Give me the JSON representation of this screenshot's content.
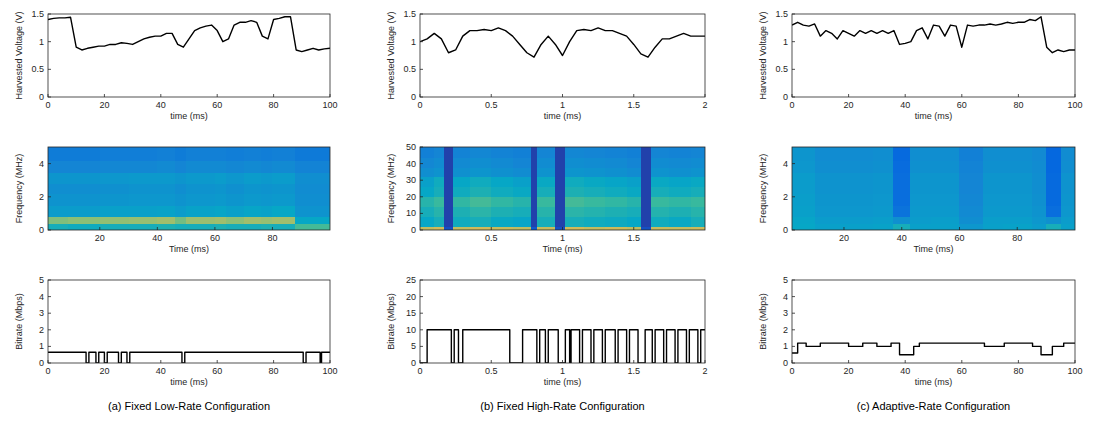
{
  "chart_data": [
    {
      "type": "line",
      "x_label": "time (ms)",
      "y_label": "Harvested Voltage (V)",
      "color": "#000000",
      "line_style": "solid",
      "xlim": [
        0,
        100
      ],
      "ylim": [
        0,
        1.5
      ],
      "xticks": [
        0,
        20,
        40,
        60,
        80,
        100
      ],
      "yticks": [
        0,
        0.5,
        1,
        1.5
      ],
      "x": [
        0,
        2,
        4,
        6,
        8,
        10,
        12,
        14,
        16,
        18,
        20,
        22,
        24,
        26,
        28,
        30,
        32,
        34,
        36,
        38,
        40,
        42,
        44,
        46,
        48,
        50,
        52,
        54,
        56,
        58,
        60,
        62,
        64,
        66,
        68,
        70,
        72,
        74,
        76,
        78,
        80,
        82,
        84,
        86,
        88,
        90,
        92,
        94,
        96,
        98,
        100
      ],
      "values": [
        1.4,
        1.42,
        1.43,
        1.43,
        1.44,
        0.9,
        0.85,
        0.88,
        0.9,
        0.92,
        0.92,
        0.95,
        0.95,
        0.98,
        0.97,
        0.95,
        1.0,
        1.05,
        1.08,
        1.1,
        1.1,
        1.15,
        1.15,
        0.95,
        0.9,
        1.05,
        1.2,
        1.25,
        1.28,
        1.3,
        1.2,
        1.0,
        1.05,
        1.3,
        1.35,
        1.35,
        1.38,
        1.35,
        1.1,
        1.05,
        1.4,
        1.42,
        1.45,
        1.45,
        0.85,
        0.82,
        0.85,
        0.88,
        0.85,
        0.87,
        0.88
      ]
    },
    {
      "type": "heatmap",
      "x_label": "Time (ms)",
      "y_label": "Frequency (MHz)",
      "xlim": [
        2,
        100
      ],
      "ylim": [
        0,
        5
      ],
      "xticks": [
        20,
        40,
        60,
        80
      ],
      "yticks": [
        0,
        2,
        4
      ],
      "zlim": [
        0,
        1
      ],
      "x_edges": [
        2,
        9,
        20,
        30,
        40,
        46,
        50,
        60,
        64,
        70,
        76,
        80,
        88,
        100
      ],
      "y_edges": [
        0,
        0.4,
        0.8,
        1.5,
        2.2,
        2.8,
        3.5,
        4.2,
        5
      ],
      "cells": [
        [
          0.5,
          0.48,
          0.5,
          0.5,
          0.52,
          0.5,
          0.5,
          0.52,
          0.5,
          0.5,
          0.52,
          0.5,
          0.62
        ],
        [
          0.72,
          0.74,
          0.75,
          0.76,
          0.78,
          0.7,
          0.77,
          0.78,
          0.74,
          0.78,
          0.76,
          0.78,
          0.45
        ],
        [
          0.4,
          0.4,
          0.42,
          0.42,
          0.43,
          0.4,
          0.43,
          0.44,
          0.42,
          0.44,
          0.43,
          0.45,
          0.36
        ],
        [
          0.36,
          0.36,
          0.37,
          0.38,
          0.38,
          0.36,
          0.38,
          0.39,
          0.37,
          0.39,
          0.38,
          0.39,
          0.34
        ],
        [
          0.34,
          0.34,
          0.35,
          0.36,
          0.36,
          0.34,
          0.36,
          0.37,
          0.35,
          0.37,
          0.36,
          0.37,
          0.33
        ],
        [
          0.37,
          0.37,
          0.38,
          0.39,
          0.39,
          0.37,
          0.39,
          0.4,
          0.38,
          0.4,
          0.39,
          0.4,
          0.34
        ],
        [
          0.3,
          0.3,
          0.31,
          0.31,
          0.32,
          0.3,
          0.32,
          0.32,
          0.31,
          0.32,
          0.31,
          0.32,
          0.29
        ],
        [
          0.26,
          0.26,
          0.27,
          0.27,
          0.28,
          0.26,
          0.28,
          0.28,
          0.27,
          0.28,
          0.27,
          0.28,
          0.25
        ]
      ]
    },
    {
      "type": "line",
      "x_label": "time (ms)",
      "y_label": "Bitrate (Mbps)",
      "color": "#000000",
      "line_style": "step",
      "xlim": [
        0,
        100
      ],
      "ylim": [
        0,
        5
      ],
      "xticks": [
        0,
        20,
        40,
        60,
        80,
        100
      ],
      "yticks": [
        0,
        1,
        2,
        3,
        4,
        5
      ],
      "x": [
        0,
        13.5,
        14.5,
        17,
        18,
        20,
        21,
        25,
        26,
        28,
        29,
        47.5,
        48.5,
        90.5,
        91.5,
        96.5,
        97,
        100
      ],
      "values": [
        0.65,
        0,
        0.65,
        0,
        0.65,
        0,
        0.65,
        0,
        0.65,
        0,
        0.65,
        0,
        0.65,
        0,
        0.65,
        0,
        0.65,
        0.65
      ]
    },
    {
      "type": "line",
      "x_label": "time (ms)",
      "y_label": "Harvested Voltage (V)",
      "color": "#000000",
      "line_style": "solid",
      "xlim": [
        0,
        2
      ],
      "ylim": [
        0,
        1.5
      ],
      "xticks": [
        0,
        0.5,
        1,
        1.5,
        2
      ],
      "yticks": [
        0,
        0.5,
        1,
        1.5
      ],
      "x": [
        0,
        0.05,
        0.1,
        0.15,
        0.2,
        0.25,
        0.3,
        0.35,
        0.4,
        0.45,
        0.5,
        0.55,
        0.6,
        0.65,
        0.7,
        0.75,
        0.8,
        0.85,
        0.9,
        0.95,
        1.0,
        1.05,
        1.1,
        1.15,
        1.2,
        1.25,
        1.3,
        1.35,
        1.4,
        1.45,
        1.5,
        1.55,
        1.6,
        1.65,
        1.7,
        1.75,
        1.8,
        1.85,
        1.9,
        1.95,
        2.0
      ],
      "values": [
        1.0,
        1.05,
        1.15,
        1.05,
        0.8,
        0.85,
        1.1,
        1.2,
        1.2,
        1.22,
        1.2,
        1.25,
        1.2,
        1.1,
        0.95,
        0.8,
        0.72,
        0.95,
        1.1,
        0.95,
        0.75,
        1.0,
        1.2,
        1.22,
        1.2,
        1.25,
        1.2,
        1.2,
        1.15,
        1.1,
        0.95,
        0.78,
        0.72,
        0.9,
        1.05,
        1.05,
        1.1,
        1.15,
        1.1,
        1.1,
        1.1
      ]
    },
    {
      "type": "heatmap",
      "x_label": "Time (ms)",
      "y_label": "Frequency (MHz)",
      "xlim": [
        0,
        2
      ],
      "ylim": [
        0,
        50
      ],
      "xticks": [
        0.5,
        1,
        1.5
      ],
      "yticks": [
        0,
        10,
        20,
        30,
        40,
        50
      ],
      "zlim": [
        0,
        1
      ],
      "x_edges": [
        0,
        0.1,
        0.17,
        0.23,
        0.35,
        0.5,
        0.65,
        0.78,
        0.82,
        0.95,
        1.02,
        1.15,
        1.3,
        1.45,
        1.55,
        1.62,
        1.75,
        1.9,
        2
      ],
      "y_edges": [
        0,
        2,
        8,
        14,
        20,
        26,
        32,
        38,
        44,
        50
      ],
      "cells": [
        [
          0.85,
          0.88,
          0.1,
          0.85,
          0.88,
          0.86,
          0.84,
          0.12,
          0.86,
          0.1,
          0.88,
          0.85,
          0.87,
          0.84,
          0.1,
          0.86,
          0.85,
          0.87
        ],
        [
          0.45,
          0.5,
          0.06,
          0.48,
          0.5,
          0.46,
          0.44,
          0.06,
          0.5,
          0.06,
          0.5,
          0.48,
          0.47,
          0.45,
          0.06,
          0.48,
          0.46,
          0.5
        ],
        [
          0.5,
          0.55,
          0.06,
          0.52,
          0.56,
          0.52,
          0.5,
          0.06,
          0.55,
          0.06,
          0.56,
          0.54,
          0.52,
          0.5,
          0.06,
          0.54,
          0.52,
          0.55
        ],
        [
          0.55,
          0.6,
          0.06,
          0.58,
          0.62,
          0.58,
          0.55,
          0.06,
          0.6,
          0.06,
          0.62,
          0.6,
          0.58,
          0.55,
          0.06,
          0.6,
          0.58,
          0.6
        ],
        [
          0.45,
          0.5,
          0.06,
          0.48,
          0.52,
          0.48,
          0.46,
          0.06,
          0.5,
          0.06,
          0.52,
          0.5,
          0.48,
          0.46,
          0.06,
          0.5,
          0.48,
          0.5
        ],
        [
          0.42,
          0.48,
          0.06,
          0.45,
          0.48,
          0.45,
          0.42,
          0.06,
          0.46,
          0.06,
          0.48,
          0.46,
          0.44,
          0.42,
          0.06,
          0.46,
          0.44,
          0.46
        ],
        [
          0.34,
          0.36,
          0.06,
          0.35,
          0.37,
          0.35,
          0.33,
          0.06,
          0.36,
          0.06,
          0.37,
          0.36,
          0.35,
          0.33,
          0.06,
          0.36,
          0.35,
          0.36
        ],
        [
          0.31,
          0.33,
          0.06,
          0.32,
          0.34,
          0.32,
          0.3,
          0.06,
          0.33,
          0.06,
          0.34,
          0.33,
          0.32,
          0.3,
          0.06,
          0.33,
          0.32,
          0.33
        ],
        [
          0.28,
          0.3,
          0.06,
          0.29,
          0.31,
          0.29,
          0.28,
          0.06,
          0.3,
          0.06,
          0.31,
          0.3,
          0.29,
          0.28,
          0.06,
          0.3,
          0.29,
          0.3
        ]
      ]
    },
    {
      "type": "line",
      "x_label": "time (ms)",
      "y_label": "Bitrate (Mbps)",
      "color": "#000000",
      "line_style": "step",
      "xlim": [
        0,
        2
      ],
      "ylim": [
        0,
        25
      ],
      "xticks": [
        0,
        0.5,
        1,
        1.5,
        2
      ],
      "yticks": [
        0,
        5,
        10,
        15,
        20,
        25
      ],
      "x": [
        0,
        0.05,
        0.22,
        0.24,
        0.27,
        0.3,
        0.63,
        0.72,
        0.82,
        0.84,
        0.88,
        0.9,
        0.97,
        1.02,
        1.05,
        1.06,
        1.12,
        1.14,
        1.2,
        1.22,
        1.28,
        1.3,
        1.37,
        1.39,
        1.45,
        1.47,
        1.53,
        1.58,
        1.63,
        1.65,
        1.71,
        1.73,
        1.79,
        1.81,
        1.87,
        1.89,
        1.95,
        1.97,
        2
      ],
      "values": [
        0,
        10,
        0,
        10,
        0,
        10,
        0,
        10,
        0,
        10,
        0,
        10,
        0,
        10,
        0,
        10,
        0,
        10,
        0,
        10,
        0,
        10,
        0,
        10,
        0,
        10,
        0,
        10,
        0,
        10,
        0,
        10,
        0,
        10,
        0,
        10,
        0,
        10,
        10
      ]
    },
    {
      "type": "line",
      "x_label": "time (ms)",
      "y_label": "Harvested Voltage (V)",
      "color": "#000000",
      "line_style": "solid",
      "xlim": [
        0,
        100
      ],
      "ylim": [
        0,
        1.5
      ],
      "xticks": [
        0,
        20,
        40,
        60,
        80,
        100
      ],
      "yticks": [
        0,
        0.5,
        1,
        1.5
      ],
      "x": [
        0,
        2,
        4,
        6,
        8,
        10,
        12,
        14,
        16,
        18,
        20,
        22,
        24,
        26,
        28,
        30,
        32,
        34,
        36,
        38,
        40,
        42,
        44,
        46,
        48,
        50,
        52,
        54,
        56,
        58,
        60,
        62,
        64,
        66,
        68,
        70,
        72,
        74,
        76,
        78,
        80,
        82,
        84,
        86,
        88,
        90,
        92,
        94,
        96,
        98,
        100
      ],
      "values": [
        1.3,
        1.35,
        1.3,
        1.28,
        1.32,
        1.1,
        1.2,
        1.15,
        1.05,
        1.2,
        1.15,
        1.1,
        1.2,
        1.15,
        1.2,
        1.15,
        1.2,
        1.15,
        1.2,
        0.95,
        0.97,
        1.0,
        1.2,
        1.25,
        1.05,
        1.3,
        1.28,
        1.1,
        1.3,
        1.28,
        0.9,
        1.3,
        1.28,
        1.3,
        1.3,
        1.32,
        1.3,
        1.32,
        1.35,
        1.33,
        1.35,
        1.35,
        1.4,
        1.38,
        1.45,
        0.9,
        0.8,
        0.85,
        0.82,
        0.85,
        0.85
      ]
    },
    {
      "type": "heatmap",
      "x_label": "Time (ms)",
      "y_label": "Frequency (MHz)",
      "xlim": [
        2,
        100
      ],
      "ylim": [
        0,
        5
      ],
      "xticks": [
        20,
        40,
        60,
        80
      ],
      "yticks": [
        0,
        2,
        4
      ],
      "zlim": [
        0,
        1
      ],
      "x_edges": [
        2,
        10,
        20,
        30,
        37,
        43,
        50,
        60,
        68,
        75,
        85,
        90,
        95,
        100
      ],
      "y_edges": [
        0,
        0.4,
        0.8,
        1.5,
        2.2,
        2.8,
        3.5,
        4.2,
        5
      ],
      "cells": [
        [
          0.45,
          0.42,
          0.42,
          0.43,
          0.5,
          0.42,
          0.42,
          0.38,
          0.42,
          0.43,
          0.4,
          0.5,
          0.42
        ],
        [
          0.44,
          0.4,
          0.4,
          0.41,
          0.35,
          0.4,
          0.41,
          0.34,
          0.41,
          0.41,
          0.38,
          0.35,
          0.4
        ],
        [
          0.42,
          0.38,
          0.38,
          0.39,
          0.22,
          0.39,
          0.39,
          0.32,
          0.39,
          0.39,
          0.36,
          0.2,
          0.38
        ],
        [
          0.41,
          0.37,
          0.37,
          0.38,
          0.2,
          0.38,
          0.38,
          0.31,
          0.38,
          0.38,
          0.35,
          0.18,
          0.37
        ],
        [
          0.4,
          0.36,
          0.36,
          0.37,
          0.2,
          0.37,
          0.37,
          0.3,
          0.37,
          0.37,
          0.34,
          0.18,
          0.36
        ],
        [
          0.4,
          0.36,
          0.36,
          0.37,
          0.2,
          0.37,
          0.37,
          0.3,
          0.37,
          0.37,
          0.34,
          0.18,
          0.36
        ],
        [
          0.38,
          0.34,
          0.34,
          0.35,
          0.19,
          0.35,
          0.35,
          0.29,
          0.35,
          0.35,
          0.33,
          0.17,
          0.34
        ],
        [
          0.37,
          0.33,
          0.33,
          0.34,
          0.18,
          0.34,
          0.34,
          0.28,
          0.34,
          0.34,
          0.32,
          0.17,
          0.33
        ]
      ]
    },
    {
      "type": "line",
      "x_label": "time (ms)",
      "y_label": "Bitrate (Mbps)",
      "color": "#000000",
      "line_style": "step",
      "xlim": [
        0,
        100
      ],
      "ylim": [
        0,
        5
      ],
      "xticks": [
        0,
        20,
        40,
        60,
        80,
        100
      ],
      "yticks": [
        0,
        1,
        2,
        3,
        4,
        5
      ],
      "x": [
        0,
        2,
        5,
        10,
        20,
        25,
        30,
        35,
        38,
        43,
        45,
        68,
        75,
        85,
        88,
        92,
        96,
        100
      ],
      "values": [
        0.6,
        1.2,
        1.0,
        1.2,
        1.0,
        1.2,
        1.0,
        1.2,
        0.5,
        1.0,
        1.2,
        1.0,
        1.2,
        1.0,
        0.5,
        1.0,
        1.2,
        1.2
      ]
    }
  ],
  "captions": [
    "(a) Fixed Low-Rate Configuration",
    "(b) Fixed High-Rate Configuration",
    "(c) Adaptive-Rate Configuration"
  ]
}
